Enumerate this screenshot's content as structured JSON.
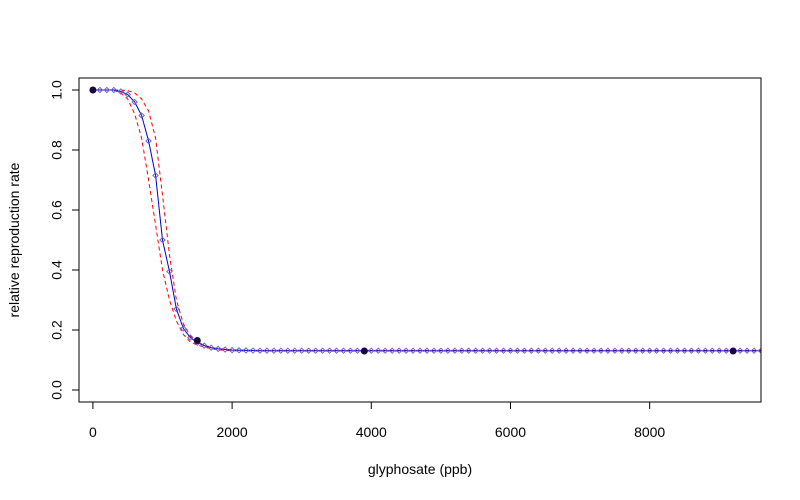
{
  "chart_data": {
    "type": "line",
    "title": "",
    "xlabel": "glyphosate (ppb)",
    "ylabel": "relative reproduction rate",
    "xlim": [
      0,
      9600
    ],
    "ylim": [
      0,
      1.0
    ],
    "x_ticks": [
      0,
      2000,
      4000,
      6000,
      8000
    ],
    "x_tick_labels": [
      "0",
      "2000",
      "4000",
      "6000",
      "8000"
    ],
    "y_ticks": [
      0.0,
      0.2,
      0.4,
      0.6,
      0.8,
      1.0
    ],
    "y_tick_labels": [
      "0.0",
      "0.2",
      "0.4",
      "0.6",
      "0.8",
      "1.0"
    ],
    "grid": false,
    "legend": "none",
    "observed_points": {
      "x": [
        0,
        1500,
        3900,
        9200
      ],
      "y": [
        1.0,
        0.165,
        0.13,
        0.13
      ],
      "color": "#1a0a3a"
    },
    "fitted_curve": {
      "color": "#0000cc",
      "marker_color": "#6a5acd",
      "line_style": "solid",
      "x": [
        0,
        100,
        200,
        300,
        400,
        500,
        600,
        700,
        800,
        900,
        1000,
        1100,
        1200,
        1300,
        1400,
        1500,
        1600,
        1700,
        1800,
        1900,
        2000,
        2200,
        2400,
        2600,
        2800,
        3000,
        3500,
        4000,
        5000,
        6000,
        7000,
        8000,
        9000,
        9600
      ],
      "y": [
        1.0,
        1.0,
        1.0,
        1.0,
        0.995,
        0.985,
        0.96,
        0.915,
        0.83,
        0.715,
        0.5,
        0.395,
        0.27,
        0.205,
        0.175,
        0.158,
        0.148,
        0.141,
        0.137,
        0.135,
        0.133,
        0.132,
        0.131,
        0.131,
        0.131,
        0.131,
        0.131,
        0.131,
        0.131,
        0.131,
        0.131,
        0.131,
        0.131,
        0.131
      ]
    },
    "confidence_bands": {
      "color": "#ff0000",
      "line_style": "dashed",
      "upper": {
        "x": [
          0,
          100,
          200,
          300,
          400,
          500,
          600,
          700,
          800,
          900,
          1000,
          1100,
          1200,
          1300,
          1400,
          1500,
          1600,
          1700,
          1800,
          1900,
          2000,
          2200,
          2400,
          3000,
          4000,
          6000,
          8000,
          9600
        ],
        "y": [
          1.0,
          1.0,
          1.0,
          1.0,
          1.0,
          0.998,
          0.99,
          0.97,
          0.93,
          0.84,
          0.65,
          0.45,
          0.3,
          0.22,
          0.18,
          0.16,
          0.149,
          0.142,
          0.138,
          0.136,
          0.134,
          0.133,
          0.132,
          0.132,
          0.132,
          0.132,
          0.132,
          0.132
        ]
      },
      "lower": {
        "x": [
          0,
          100,
          200,
          300,
          400,
          500,
          600,
          700,
          800,
          900,
          1000,
          1100,
          1200,
          1300,
          1400,
          1500,
          1600,
          1700,
          1800,
          1900,
          2000,
          2200,
          2400,
          3000,
          4000,
          6000,
          8000,
          9600
        ],
        "y": [
          1.0,
          1.0,
          1.0,
          1.0,
          0.99,
          0.97,
          0.92,
          0.84,
          0.7,
          0.55,
          0.4,
          0.3,
          0.23,
          0.185,
          0.16,
          0.15,
          0.143,
          0.138,
          0.134,
          0.132,
          0.131,
          0.13,
          0.13,
          0.13,
          0.13,
          0.13,
          0.13,
          0.13
        ]
      }
    }
  }
}
